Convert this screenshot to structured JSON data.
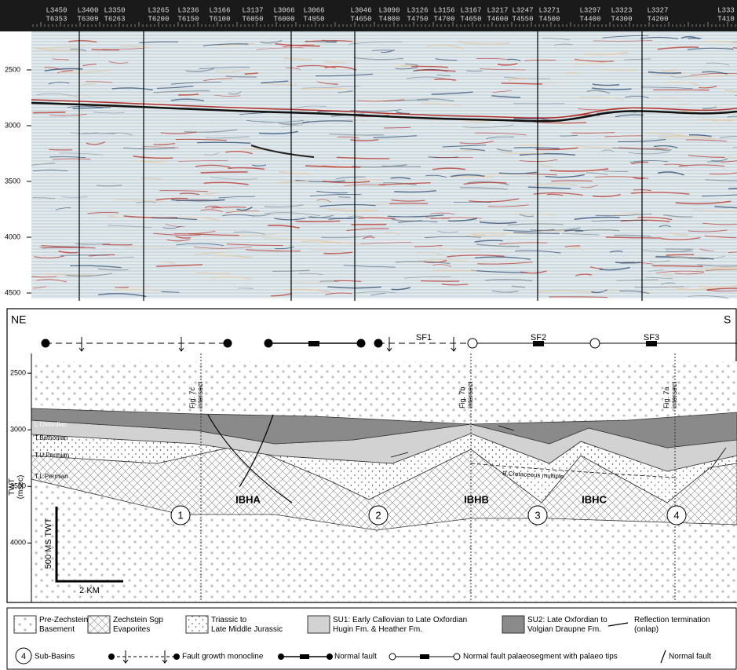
{
  "seismic_section": {
    "line_labels": [
      {
        "line": "L3450",
        "trace": "T6353"
      },
      {
        "line": "L3400",
        "trace": "T6309"
      },
      {
        "line": "L3350",
        "trace": "T6263"
      },
      {
        "line": "L3265",
        "trace": "T6200"
      },
      {
        "line": "L3236",
        "trace": "T6150"
      },
      {
        "line": "L3166",
        "trace": "T6100"
      },
      {
        "line": "L3137",
        "trace": "T6050"
      },
      {
        "line": "L3066",
        "trace": "T6000"
      },
      {
        "line": "L3066",
        "trace": "T4950"
      },
      {
        "line": "L3046",
        "trace": "T4650"
      },
      {
        "line": "L3090",
        "trace": "T4800"
      },
      {
        "line": "L3126",
        "trace": "T4750"
      },
      {
        "line": "L3156",
        "trace": "T4700"
      },
      {
        "line": "L3167",
        "trace": "T4650"
      },
      {
        "line": "L3217",
        "trace": "T4600"
      },
      {
        "line": "L3247",
        "trace": "T4550"
      },
      {
        "line": "L3271",
        "trace": "T4500"
      },
      {
        "line": "L3297",
        "trace": "T4400"
      },
      {
        "line": "L3323",
        "trace": "T4300"
      },
      {
        "line": "L3327",
        "trace": "T4200"
      },
      {
        "line": "L333",
        "trace": "T410"
      }
    ],
    "ylim": [
      2155,
      4549
    ],
    "yticks": [
      2500,
      3000,
      3500,
      4000,
      4500
    ]
  },
  "interpretation": {
    "left_label": "NE",
    "right_label": "S",
    "fault_labels": [
      "SF1",
      "SF2",
      "SF3"
    ],
    "intersects": [
      [
        "Fig. 7c",
        "intersect"
      ],
      [
        "Fig. 7b",
        "intersect"
      ],
      [
        "Fig. 7a",
        "intersect"
      ]
    ],
    "horizons": [
      "B.Cretaceous",
      "L.Oxfordian",
      "T.Bathonian",
      "T.U.Permian",
      "T.L.Permian"
    ],
    "multiple_label": "B.Cretaceous multiple",
    "basins": [
      "IBHA",
      "IBHB",
      "IBHC"
    ],
    "subbasin_numbers": [
      "1",
      "2",
      "3",
      "4"
    ],
    "y_axis_label": [
      "TWT",
      "(msec)"
    ],
    "ylim": [
      1944,
      4525
    ],
    "yticks": [
      2500,
      3000,
      3500,
      4000
    ],
    "scale_vertical": "500 MS TWT",
    "scale_horizontal": "2 KM"
  },
  "legend": {
    "units": [
      [
        "Pre-Zechstein",
        "Basement"
      ],
      [
        "Zechstein Sgp",
        "Evaporites"
      ],
      [
        "Triassic to",
        "Late Middle Jurassic"
      ],
      [
        "SU1: Early Callovian to Late Oxfordian",
        "Hugin Fm. & Heather Fm."
      ],
      [
        "SU2: Late Oxfordian to",
        "Volgian Draupne Fm."
      ],
      [
        "Reflection termination",
        "(onlap)"
      ]
    ],
    "subbasin_symbol": "4",
    "symbols": [
      "Sub-Basins",
      "Fault growth monocline",
      "Normal fault",
      "Normal fault palaeosegment with palaeo tips",
      "Normal fault"
    ]
  }
}
